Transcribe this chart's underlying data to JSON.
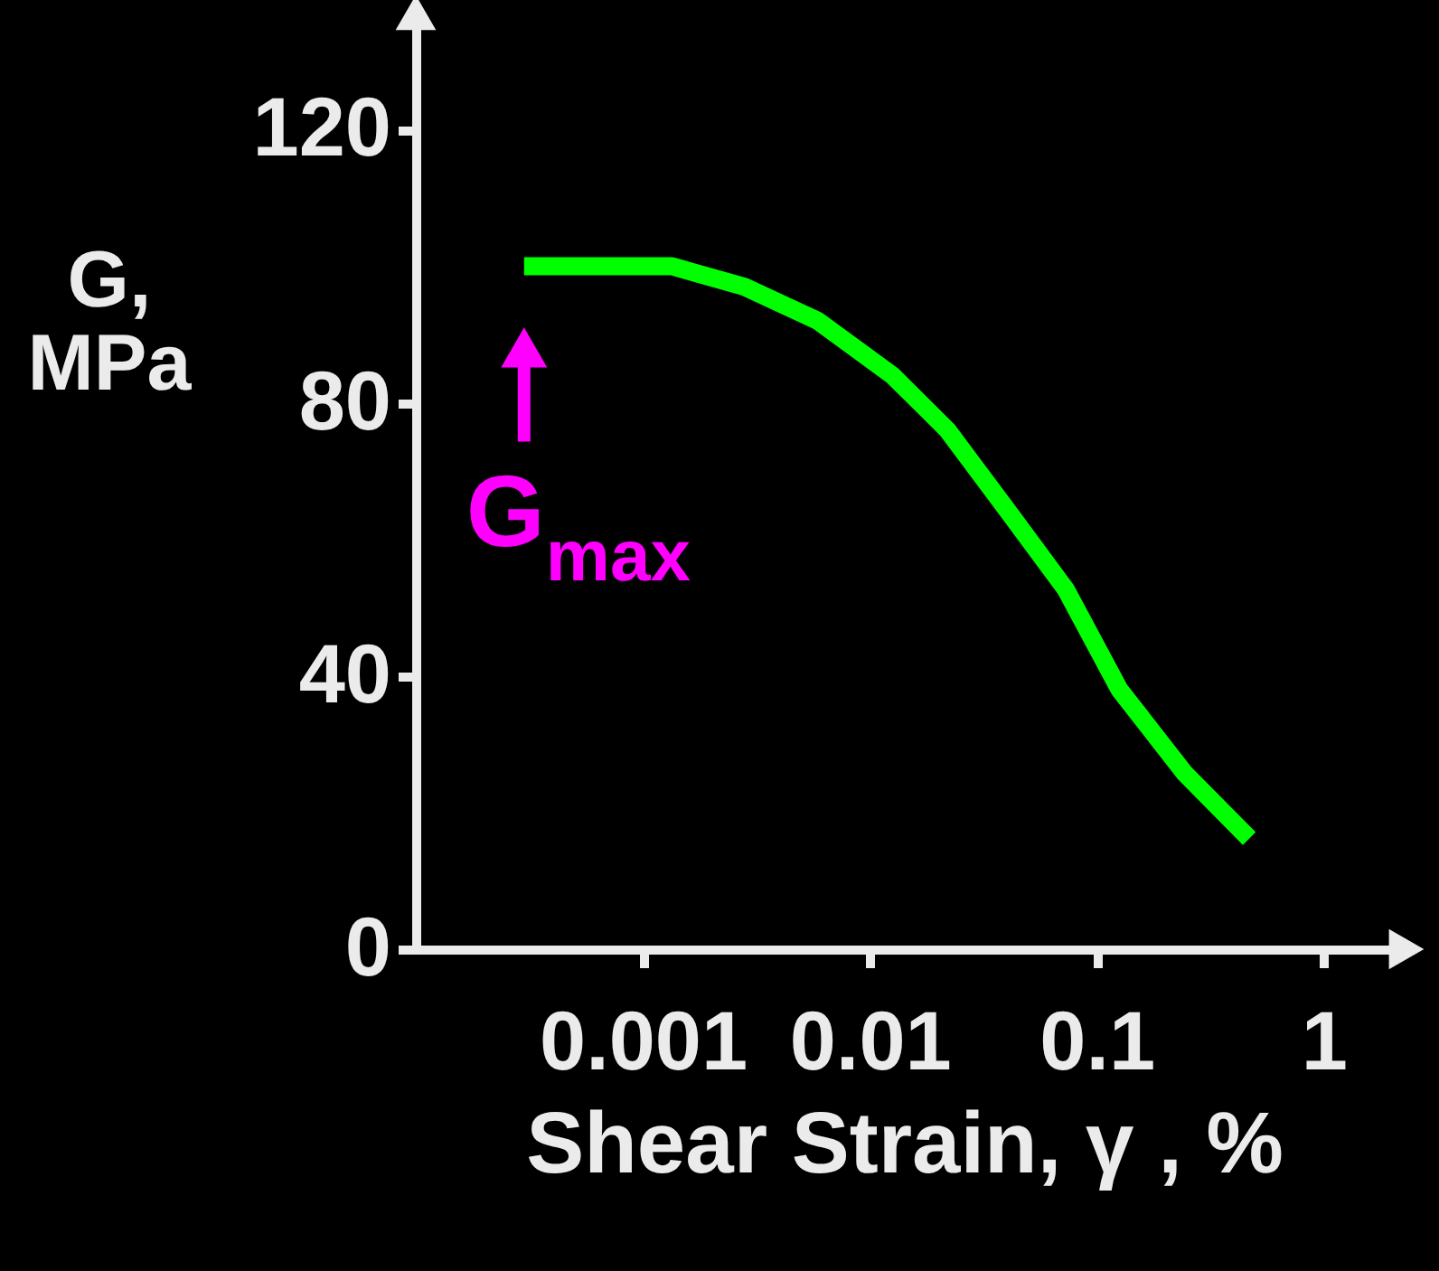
{
  "chart_data": {
    "type": "line",
    "xlabel": "Shear Strain, γ , %",
    "ylabel": "G,\nMPa",
    "log": "x",
    "x": [
      0.0003,
      0.00134,
      0.0028,
      0.0059,
      0.0126,
      0.022,
      0.042,
      0.073,
      0.126,
      0.245,
      0.47
    ],
    "series": [
      {
        "color": "#00ff00",
        "values": [
          100,
          100,
          97,
          92,
          84,
          76,
          63.5,
          52.7,
          38,
          25.7,
          16.2
        ]
      }
    ],
    "xlim": [
      0.0001,
      2
    ],
    "xticks": [
      0.001,
      0.01,
      0.1,
      1
    ],
    "ylim": [
      0,
      135
    ],
    "yticks": [
      0,
      40,
      80,
      120
    ],
    "grid": false,
    "marker": "none",
    "line_style": "solid",
    "annotations": [
      {
        "text": "G$_{max}$",
        "x": 0.0003,
        "y": 100
      }
    ]
  }
}
